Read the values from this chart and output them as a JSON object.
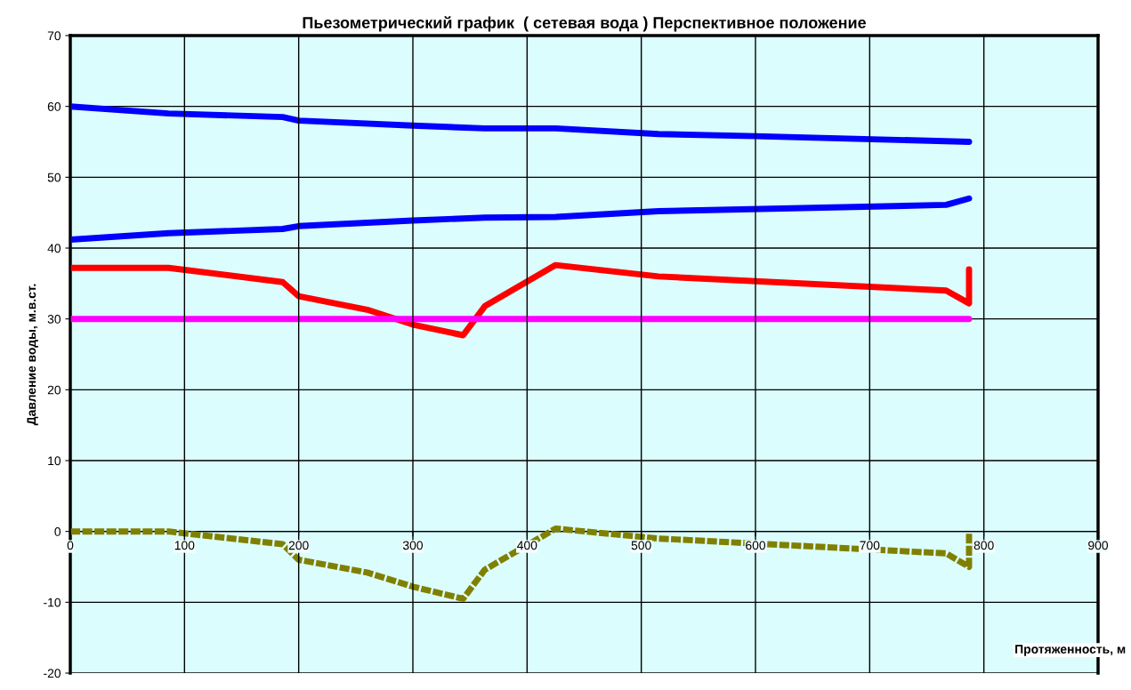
{
  "chart_data": {
    "type": "line",
    "title": "Пьезометрический график  ( сетевая вода ) Перспективное положение",
    "xlabel": "Протяженность, м",
    "ylabel": "Давление воды, м.в.ст.",
    "xlim": [
      0,
      900
    ],
    "xticks": [
      0,
      100,
      200,
      300,
      400,
      500,
      600,
      700,
      800,
      900
    ],
    "ylim": [
      -20,
      70
    ],
    "yticks": [
      -20,
      -10,
      0,
      10,
      20,
      30,
      40,
      50,
      60,
      70
    ],
    "grid": true,
    "legend": false,
    "marker": "none",
    "series": [
      {
        "color": "#0000ff",
        "x": [
          0,
          86,
          186,
          200,
          300,
          363,
          425,
          515,
          600,
          787
        ],
        "values": [
          60,
          59,
          58.5,
          58,
          57.3,
          56.9,
          56.9,
          56.1,
          55.8,
          55
        ]
      },
      {
        "color": "#0000ff",
        "x": [
          0,
          86,
          186,
          200,
          300,
          363,
          425,
          515,
          767,
          787
        ],
        "values": [
          41.2,
          42.1,
          42.7,
          43.1,
          43.9,
          44.3,
          44.4,
          45.2,
          46.1,
          47
        ]
      },
      {
        "color": "#ff0000",
        "x": [
          0,
          86,
          186,
          200,
          260,
          300,
          344,
          363,
          425,
          515,
          767,
          787,
          787
        ],
        "values": [
          37.2,
          37.2,
          35.2,
          33.2,
          31.3,
          29.2,
          27.7,
          31.8,
          37.6,
          36,
          34,
          32.2,
          37
        ]
      },
      {
        "color": "#ff00ff",
        "x": [
          0,
          787
        ],
        "values": [
          30,
          30
        ]
      },
      {
        "color": "#808000",
        "line_style": "dotted",
        "x": [
          0,
          86,
          186,
          200,
          260,
          300,
          344,
          363,
          425,
          515,
          767,
          787,
          787
        ],
        "values": [
          0,
          0,
          -1.8,
          -4,
          -5.8,
          -7.8,
          -9.5,
          -5.4,
          0.4,
          -1,
          -3.1,
          -5,
          0
        ]
      }
    ]
  }
}
